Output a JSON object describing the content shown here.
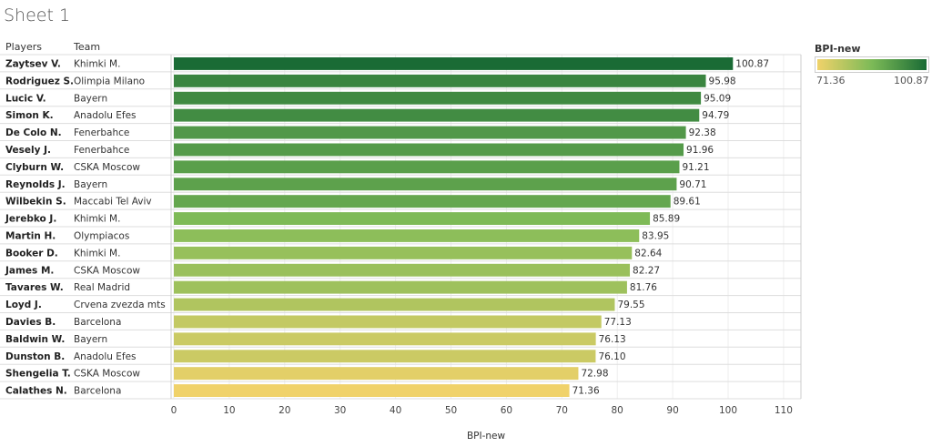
{
  "sheet_title": "Sheet 1",
  "headers": {
    "players": "Players",
    "team": "Team"
  },
  "legend": {
    "title": "BPI-new",
    "min_label": "71.36",
    "max_label": "100.87",
    "color_low": "#f0d26a",
    "color_mid": "#7cba57",
    "color_high": "#1a6b35"
  },
  "chart_data": {
    "type": "bar",
    "orientation": "horizontal",
    "xlabel": "BPI-new",
    "xlim": [
      0,
      115
    ],
    "xticks": [
      0,
      10,
      20,
      30,
      40,
      50,
      60,
      70,
      80,
      90,
      100,
      110
    ],
    "grid": true,
    "rows": [
      {
        "player": "Zaytsev V.",
        "team": "Khimki M.",
        "value": 100.87,
        "label": "100.87"
      },
      {
        "player": "Rodriguez S.",
        "team": "Olimpia Milano",
        "value": 95.98,
        "label": "95.98"
      },
      {
        "player": "Lucic V.",
        "team": "Bayern",
        "value": 95.09,
        "label": "95.09"
      },
      {
        "player": "Simon K.",
        "team": "Anadolu Efes",
        "value": 94.79,
        "label": "94.79"
      },
      {
        "player": "De Colo N.",
        "team": "Fenerbahce",
        "value": 92.38,
        "label": "92.38"
      },
      {
        "player": "Vesely J.",
        "team": "Fenerbahce",
        "value": 91.96,
        "label": "91.96"
      },
      {
        "player": "Clyburn W.",
        "team": "CSKA Moscow",
        "value": 91.21,
        "label": "91.21"
      },
      {
        "player": "Reynolds J.",
        "team": "Bayern",
        "value": 90.71,
        "label": "90.71"
      },
      {
        "player": "Wilbekin S.",
        "team": "Maccabi Tel Aviv",
        "value": 89.61,
        "label": "89.61"
      },
      {
        "player": "Jerebko J.",
        "team": "Khimki M.",
        "value": 85.89,
        "label": "85.89"
      },
      {
        "player": "Martin H.",
        "team": "Olympiacos",
        "value": 83.95,
        "label": "83.95"
      },
      {
        "player": "Booker D.",
        "team": "Khimki M.",
        "value": 82.64,
        "label": "82.64"
      },
      {
        "player": "James M.",
        "team": "CSKA Moscow",
        "value": 82.27,
        "label": "82.27"
      },
      {
        "player": "Tavares W.",
        "team": "Real Madrid",
        "value": 81.76,
        "label": "81.76"
      },
      {
        "player": "Loyd J.",
        "team": "Crvena zvezda mts",
        "value": 79.55,
        "label": "79.55"
      },
      {
        "player": "Davies B.",
        "team": "Barcelona",
        "value": 77.13,
        "label": "77.13"
      },
      {
        "player": "Baldwin W.",
        "team": "Bayern",
        "value": 76.13,
        "label": "76.13"
      },
      {
        "player": "Dunston B.",
        "team": "Anadolu Efes",
        "value": 76.1,
        "label": "76.10"
      },
      {
        "player": "Shengelia T.",
        "team": "CSKA Moscow",
        "value": 72.98,
        "label": "72.98"
      },
      {
        "player": "Calathes N.",
        "team": "Barcelona",
        "value": 71.36,
        "label": "71.36"
      }
    ]
  }
}
